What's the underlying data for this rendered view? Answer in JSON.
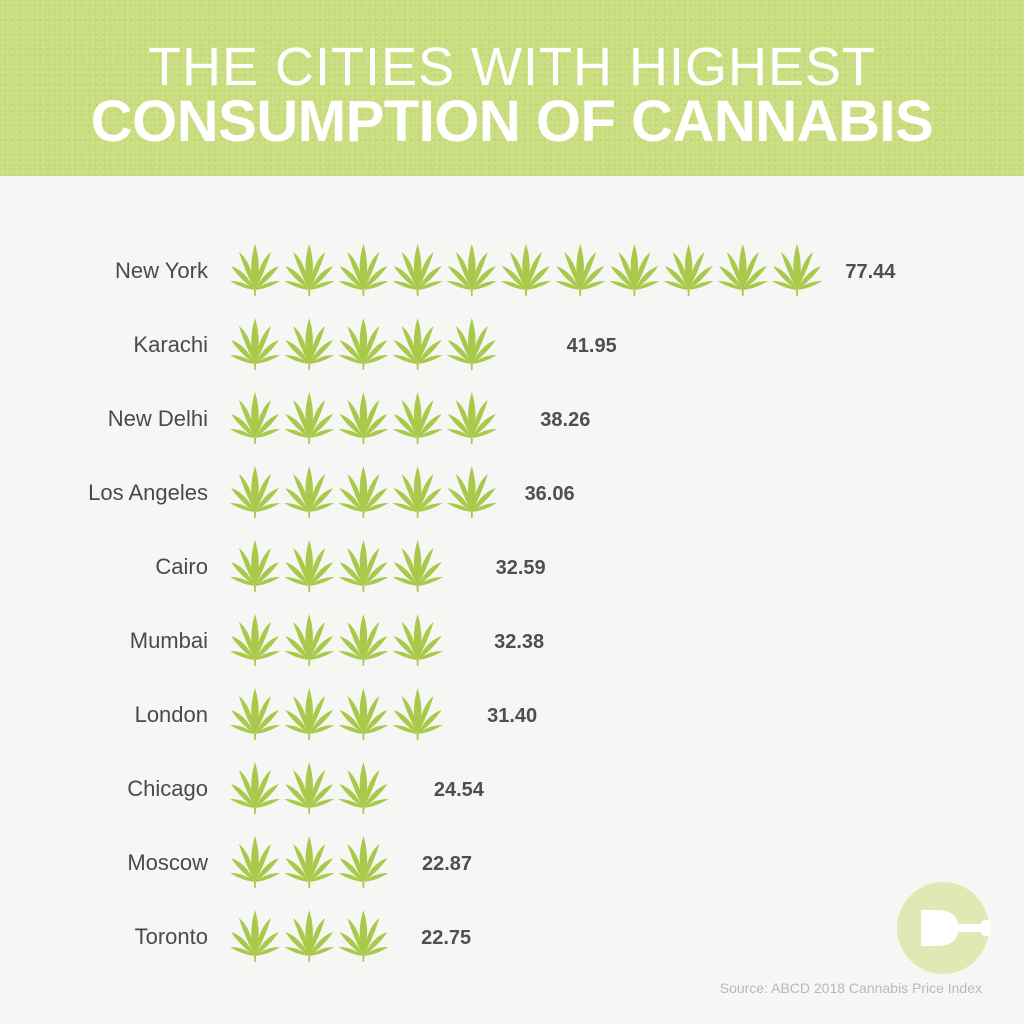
{
  "header": {
    "title_line1": "THE CITIES WITH HIGHEST",
    "title_line2": "CONSUMPTION OF CANNABIS"
  },
  "colors": {
    "header_bg": "#c9dd7e",
    "leaf": "#a9c94a",
    "leaf_dark": "#8fb035",
    "logo": "#dfe9b4"
  },
  "icons": {
    "unit": "cannabis-leaf-icon",
    "logo": "brand-logo-icon"
  },
  "footer": {
    "source": "Source: ABCD 2018 Cannabis Price Index"
  },
  "chart_data": {
    "type": "bar",
    "style": "pictograph",
    "title": "THE CITIES WITH HIGHEST CONSUMPTION OF CANNABIS",
    "units_per_icon": 7,
    "categories": [
      "New York",
      "Karachi",
      "New Delhi",
      "Los Angeles",
      "Cairo",
      "Mumbai",
      "London",
      "Chicago",
      "Moscow",
      "Toronto"
    ],
    "values": [
      77.44,
      41.95,
      38.26,
      36.06,
      32.59,
      32.38,
      31.4,
      24.54,
      22.87,
      22.75
    ],
    "value_labels": [
      "77.44",
      "41.95",
      "38.26",
      "36.06",
      "32.59",
      "32.38",
      "31.40",
      "24.54",
      "22.87",
      "22.75"
    ],
    "grid": false,
    "legend": "none"
  }
}
